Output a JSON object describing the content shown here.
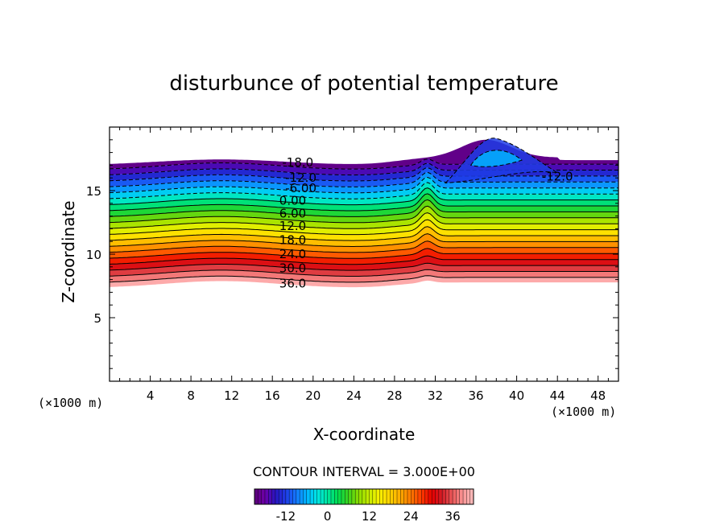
{
  "chart_data": {
    "type": "contour",
    "title": "disturbunce of potential temperature",
    "xlabel": "X-coordinate",
    "ylabel": "Z-coordinate",
    "x_unit_label": "(×1000 m)",
    "z_unit_label": "(×1000 m)",
    "xlim": [
      0,
      50
    ],
    "ylim": [
      0,
      20
    ],
    "x_ticks": [
      4,
      8,
      12,
      16,
      20,
      24,
      28,
      32,
      36,
      40,
      44,
      48
    ],
    "y_ticks": [
      5,
      10,
      15
    ],
    "contour_interval_text": "CONTOUR INTERVAL = 3.000E+00",
    "contour_labels": [
      {
        "text": "-18.0",
        "x": 18.5,
        "z": 17.2
      },
      {
        "text": "-12.0",
        "x": 18.8,
        "z": 16.0
      },
      {
        "text": "-6.00",
        "x": 18.8,
        "z": 15.2
      },
      {
        "text": "0.00",
        "x": 18.0,
        "z": 14.2
      },
      {
        "text": "6.00",
        "x": 18.0,
        "z": 13.2
      },
      {
        "text": "12.0",
        "x": 18.0,
        "z": 12.2
      },
      {
        "text": "18.0",
        "x": 18.0,
        "z": 11.1
      },
      {
        "text": "24.0",
        "x": 18.0,
        "z": 10.0
      },
      {
        "text": "30.0",
        "x": 18.0,
        "z": 8.9
      },
      {
        "text": "36.0",
        "x": 18.0,
        "z": 7.7
      },
      {
        "text": "-12.0",
        "x": 44.0,
        "z": 16.1
      }
    ],
    "levels": [
      -18,
      -15,
      -12,
      -9,
      -6,
      -3,
      0,
      3,
      6,
      9,
      12,
      15,
      18,
      21,
      24,
      27,
      30,
      33,
      36,
      39
    ],
    "colorbar": {
      "min": -21,
      "max": 42,
      "tick_values": [
        -12,
        0,
        12,
        24,
        36
      ],
      "tick_labels": [
        "-12",
        "0",
        "12",
        "24",
        "36"
      ]
    }
  }
}
